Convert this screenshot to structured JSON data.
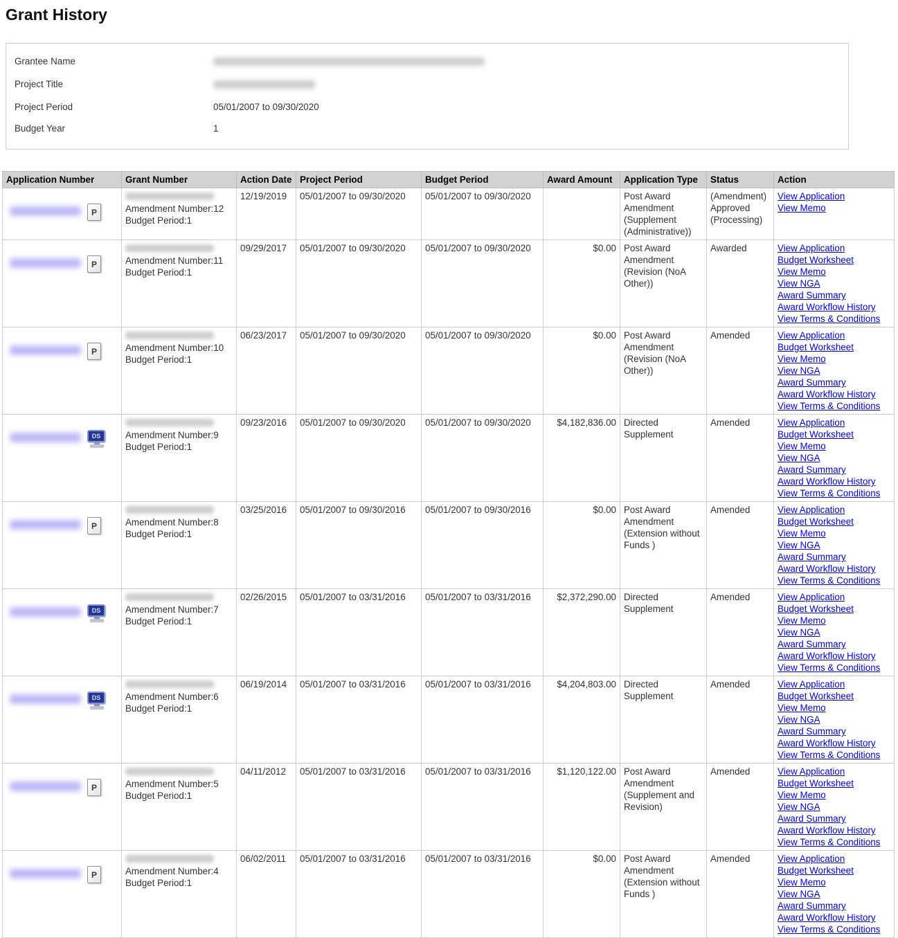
{
  "page": {
    "title": "Grant History"
  },
  "summary": {
    "fields": [
      {
        "label": "Grantee Name",
        "value": "",
        "redacted": true
      },
      {
        "label": "Project Title",
        "value": "",
        "redacted": true
      },
      {
        "label": "Project Period",
        "value": "05/01/2007 to 09/30/2020",
        "redacted": false
      },
      {
        "label": "Budget Year",
        "value": "1",
        "redacted": false
      }
    ]
  },
  "table": {
    "columns": [
      "Application Number",
      "Grant Number",
      "Action Date",
      "Project Period",
      "Budget Period",
      "Award Amount",
      "Application Type",
      "Status",
      "Action"
    ],
    "rows": [
      {
        "icon": "P",
        "amendment_number": "Amendment Number:12",
        "budget_period_label": "Budget Period:1",
        "action_date": "12/19/2019",
        "project_period": "05/01/2007 to 09/30/2020",
        "budget_period": "05/01/2007 to 09/30/2020",
        "award_amount": "",
        "application_type": "Post Award Amendment (Supplement (Administrative))",
        "status": "(Amendment) Approved (Processing)",
        "actions": [
          "View Application",
          "View Memo"
        ]
      },
      {
        "icon": "P",
        "amendment_number": "Amendment Number:11",
        "budget_period_label": "Budget Period:1",
        "action_date": "09/29/2017",
        "project_period": "05/01/2007 to 09/30/2020",
        "budget_period": "05/01/2007 to 09/30/2020",
        "award_amount": "$0.00",
        "application_type": "Post Award Amendment (Revision (NoA Other))",
        "status": "Awarded",
        "actions": [
          "View Application",
          "Budget Worksheet",
          "View Memo",
          "View NGA",
          "Award Summary",
          "Award Workflow History",
          "View Terms & Conditions"
        ]
      },
      {
        "icon": "P",
        "amendment_number": "Amendment Number:10",
        "budget_period_label": "Budget Period:1",
        "action_date": "06/23/2017",
        "project_period": "05/01/2007 to 09/30/2020",
        "budget_period": "05/01/2007 to 09/30/2020",
        "award_amount": "$0.00",
        "application_type": "Post Award Amendment (Revision (NoA Other))",
        "status": "Amended",
        "actions": [
          "View Application",
          "Budget Worksheet",
          "View Memo",
          "View NGA",
          "Award Summary",
          "Award Workflow History",
          "View Terms & Conditions"
        ]
      },
      {
        "icon": "DS",
        "amendment_number": "Amendment Number:9",
        "budget_period_label": "Budget Period:1",
        "action_date": "09/23/2016",
        "project_period": "05/01/2007 to 09/30/2020",
        "budget_period": "05/01/2007 to 09/30/2020",
        "award_amount": "$4,182,836.00",
        "application_type": "Directed Supplement",
        "status": "Amended",
        "actions": [
          "View Application",
          "Budget Worksheet",
          "View Memo",
          "View NGA",
          "Award Summary",
          "Award Workflow History",
          "View Terms & Conditions"
        ]
      },
      {
        "icon": "P",
        "amendment_number": "Amendment Number:8",
        "budget_period_label": "Budget Period:1",
        "action_date": "03/25/2016",
        "project_period": "05/01/2007 to 09/30/2016",
        "budget_period": "05/01/2007 to 09/30/2016",
        "award_amount": "$0.00",
        "application_type": "Post Award Amendment (Extension without Funds )",
        "status": "Amended",
        "actions": [
          "View Application",
          "Budget Worksheet",
          "View Memo",
          "View NGA",
          "Award Summary",
          "Award Workflow History",
          "View Terms & Conditions"
        ]
      },
      {
        "icon": "DS",
        "amendment_number": "Amendment Number:7",
        "budget_period_label": "Budget Period:1",
        "action_date": "02/26/2015",
        "project_period": "05/01/2007 to 03/31/2016",
        "budget_period": "05/01/2007 to 03/31/2016",
        "award_amount": "$2,372,290.00",
        "application_type": "Directed Supplement",
        "status": "Amended",
        "actions": [
          "View Application",
          "Budget Worksheet",
          "View Memo",
          "View NGA",
          "Award Summary",
          "Award Workflow History",
          "View Terms & Conditions"
        ]
      },
      {
        "icon": "DS",
        "amendment_number": "Amendment Number:6",
        "budget_period_label": "Budget Period:1",
        "action_date": "06/19/2014",
        "project_period": "05/01/2007 to 03/31/2016",
        "budget_period": "05/01/2007 to 03/31/2016",
        "award_amount": "$4,204,803.00",
        "application_type": "Directed Supplement",
        "status": "Amended",
        "actions": [
          "View Application",
          "Budget Worksheet",
          "View Memo",
          "View NGA",
          "Award Summary",
          "Award Workflow History",
          "View Terms & Conditions"
        ]
      },
      {
        "icon": "P",
        "amendment_number": "Amendment Number:5",
        "budget_period_label": "Budget Period:1",
        "action_date": "04/11/2012",
        "project_period": "05/01/2007 to 03/31/2016",
        "budget_period": "05/01/2007 to 03/31/2016",
        "award_amount": "$1,120,122.00",
        "application_type": "Post Award Amendment (Supplement and Revision)",
        "status": "Amended",
        "actions": [
          "View Application",
          "Budget Worksheet",
          "View Memo",
          "View NGA",
          "Award Summary",
          "Award Workflow History",
          "View Terms & Conditions"
        ]
      },
      {
        "icon": "P",
        "amendment_number": "Amendment Number:4",
        "budget_period_label": "Budget Period:1",
        "action_date": "06/02/2011",
        "project_period": "05/01/2007 to 03/31/2016",
        "budget_period": "05/01/2007 to 03/31/2016",
        "award_amount": "$0.00",
        "application_type": "Post Award Amendment (Extension without Funds )",
        "status": "Amended",
        "actions": [
          "View Application",
          "Budget Worksheet",
          "View Memo",
          "View NGA",
          "Award Summary",
          "Award Workflow History",
          "View Terms & Conditions"
        ]
      }
    ]
  },
  "colors": {
    "link": "#0000EE",
    "header_bg": "#d2d2d2",
    "table_border": "#cbcbcb",
    "app_number_blur": "#8b7cf0",
    "redacted_blur": "#8f8f8f",
    "ds_icon_blue": "#26368f"
  }
}
